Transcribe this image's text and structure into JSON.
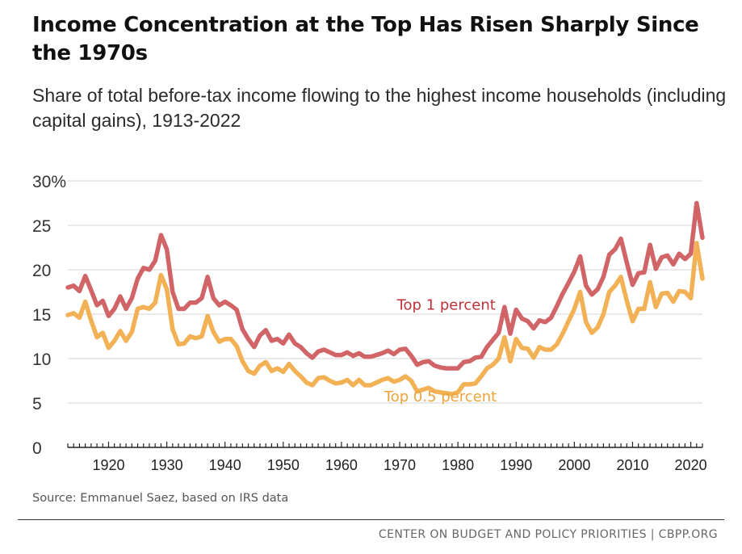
{
  "title": "Income Concentration at the Top Has Risen Sharply Since the 1970s",
  "subtitle": "Share of total before-tax income flowing to the highest income households (including capital gains), 1913-2022",
  "source": "Source: Emmanuel Saez, based on IRS data",
  "footer": "CENTER ON BUDGET AND POLICY PRIORITIES | CBPP.ORG",
  "colors": {
    "top1": "#d16467",
    "top1_label": "#c0323b",
    "top05": "#f1b154",
    "top05_label": "#eea43a",
    "grid": "#d4d4d4",
    "axis": "#222222"
  },
  "chart_data": {
    "type": "line",
    "xlabel": "",
    "ylabel": "",
    "ylim": [
      0,
      30
    ],
    "xlim": [
      1913,
      2022
    ],
    "yticks": [
      0,
      5,
      10,
      15,
      20,
      25,
      30
    ],
    "ytick_labels": [
      "0",
      "5",
      "10",
      "15",
      "20",
      "25",
      "30%"
    ],
    "xticks": [
      1920,
      1930,
      1940,
      1950,
      1960,
      1970,
      1980,
      1990,
      2000,
      2010,
      2020
    ],
    "xtick_labels": [
      "1920",
      "1930",
      "1940",
      "1950",
      "1960",
      "1970",
      "1980",
      "1990",
      "2000",
      "2010",
      "2020"
    ],
    "grid": true,
    "series": [
      {
        "name": "Top 1 percent",
        "color": "#d16467",
        "x": [
          1913,
          1914,
          1915,
          1916,
          1917,
          1918,
          1919,
          1920,
          1921,
          1922,
          1923,
          1924,
          1925,
          1926,
          1927,
          1928,
          1929,
          1930,
          1931,
          1932,
          1933,
          1934,
          1935,
          1936,
          1937,
          1938,
          1939,
          1940,
          1941,
          1942,
          1943,
          1944,
          1945,
          1946,
          1947,
          1948,
          1949,
          1950,
          1951,
          1952,
          1953,
          1954,
          1955,
          1956,
          1957,
          1958,
          1959,
          1960,
          1961,
          1962,
          1963,
          1964,
          1965,
          1966,
          1967,
          1968,
          1969,
          1970,
          1971,
          1972,
          1973,
          1974,
          1975,
          1976,
          1977,
          1978,
          1979,
          1980,
          1981,
          1982,
          1983,
          1984,
          1985,
          1986,
          1987,
          1988,
          1989,
          1990,
          1991,
          1992,
          1993,
          1994,
          1995,
          1996,
          1997,
          1998,
          1999,
          2000,
          2001,
          2002,
          2003,
          2004,
          2005,
          2006,
          2007,
          2008,
          2009,
          2010,
          2011,
          2012,
          2013,
          2014,
          2015,
          2016,
          2017,
          2018,
          2019,
          2020,
          2021,
          2022
        ],
        "values": [
          18.0,
          18.2,
          17.6,
          19.3,
          17.7,
          16.0,
          16.5,
          14.8,
          15.6,
          17.0,
          15.6,
          16.8,
          19.0,
          20.2,
          20.0,
          21.0,
          23.9,
          22.3,
          17.5,
          15.6,
          15.6,
          16.3,
          16.3,
          16.8,
          19.2,
          16.8,
          16.0,
          16.4,
          16.0,
          15.5,
          13.3,
          12.2,
          11.3,
          12.6,
          13.2,
          12.0,
          12.2,
          11.7,
          12.7,
          11.7,
          11.3,
          10.6,
          10.1,
          10.8,
          11.0,
          10.7,
          10.4,
          10.4,
          10.7,
          10.3,
          10.6,
          10.2,
          10.2,
          10.4,
          10.6,
          10.9,
          10.5,
          11.0,
          11.1,
          10.3,
          9.3,
          9.6,
          9.7,
          9.2,
          9.0,
          8.9,
          8.9,
          8.9,
          9.6,
          9.7,
          10.1,
          10.2,
          11.3,
          12.1,
          12.9,
          15.8,
          12.8,
          15.5,
          14.5,
          14.2,
          13.4,
          14.3,
          14.1,
          14.6,
          15.9,
          17.3,
          18.5,
          19.8,
          21.5,
          18.2,
          17.2,
          17.8,
          19.2,
          21.7,
          22.3,
          23.5,
          20.8,
          18.3,
          19.6,
          19.7,
          22.8,
          20.1,
          21.4,
          21.6,
          20.6,
          21.8,
          21.2,
          21.8,
          27.5,
          23.6
        ]
      },
      {
        "name": "Top 0.5 percent",
        "color": "#f1b154",
        "x": [
          1913,
          1914,
          1915,
          1916,
          1917,
          1918,
          1919,
          1920,
          1921,
          1922,
          1923,
          1924,
          1925,
          1926,
          1927,
          1928,
          1929,
          1930,
          1931,
          1932,
          1933,
          1934,
          1935,
          1936,
          1937,
          1938,
          1939,
          1940,
          1941,
          1942,
          1943,
          1944,
          1945,
          1946,
          1947,
          1948,
          1949,
          1950,
          1951,
          1952,
          1953,
          1954,
          1955,
          1956,
          1957,
          1958,
          1959,
          1960,
          1961,
          1962,
          1963,
          1964,
          1965,
          1966,
          1967,
          1968,
          1969,
          1970,
          1971,
          1972,
          1973,
          1974,
          1975,
          1976,
          1977,
          1978,
          1979,
          1980,
          1981,
          1982,
          1983,
          1984,
          1985,
          1986,
          1987,
          1988,
          1989,
          1990,
          1991,
          1992,
          1993,
          1994,
          1995,
          1996,
          1997,
          1998,
          1999,
          2000,
          2001,
          2002,
          2003,
          2004,
          2005,
          2006,
          2007,
          2008,
          2009,
          2010,
          2011,
          2012,
          2013,
          2014,
          2015,
          2016,
          2017,
          2018,
          2019,
          2020,
          2021,
          2022
        ],
        "values": [
          14.9,
          15.1,
          14.6,
          16.4,
          14.3,
          12.4,
          12.9,
          11.2,
          12.0,
          13.1,
          12.0,
          13.0,
          15.6,
          15.8,
          15.6,
          16.3,
          19.4,
          17.8,
          13.3,
          11.6,
          11.7,
          12.5,
          12.3,
          12.5,
          14.8,
          13.0,
          11.9,
          12.2,
          12.2,
          11.4,
          9.7,
          8.6,
          8.3,
          9.2,
          9.6,
          8.6,
          8.9,
          8.5,
          9.4,
          8.6,
          8.0,
          7.3,
          7.0,
          7.8,
          7.9,
          7.5,
          7.2,
          7.3,
          7.6,
          7.0,
          7.6,
          7.0,
          7.0,
          7.3,
          7.6,
          7.8,
          7.4,
          7.6,
          8.0,
          7.5,
          6.3,
          6.5,
          6.7,
          6.3,
          6.2,
          6.1,
          6.0,
          6.2,
          7.1,
          7.1,
          7.2,
          8.0,
          8.9,
          9.3,
          10.0,
          12.4,
          9.7,
          12.2,
          11.2,
          11.1,
          10.1,
          11.3,
          11.0,
          11.0,
          11.6,
          12.8,
          14.2,
          15.6,
          17.5,
          14.1,
          12.9,
          13.5,
          15.0,
          17.5,
          18.2,
          19.2,
          16.5,
          14.2,
          15.6,
          15.6,
          18.6,
          15.8,
          17.3,
          17.4,
          16.4,
          17.6,
          17.5,
          16.8,
          23.0,
          19.0
        ]
      }
    ],
    "annotations": [
      {
        "text": "Top 1 percent",
        "x": 1978,
        "y": 15.5,
        "series": 0
      },
      {
        "text": "Top 0.5 percent",
        "x": 1977,
        "y": 5.2,
        "series": 1
      }
    ]
  }
}
